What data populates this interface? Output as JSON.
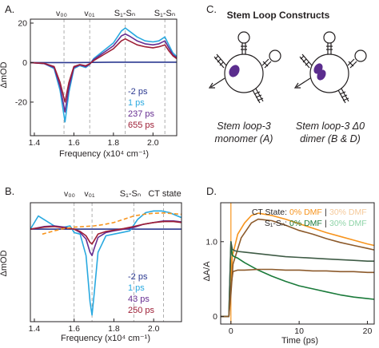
{
  "colors": {
    "navy": "#2b3990",
    "cyan": "#29a9e0",
    "purple": "#662d91",
    "darkred": "#9e1f36",
    "orange": "#f7941d",
    "ctlight": "#f5c99a",
    "brown": "#8c5a2b",
    "green": "#1a7a3a",
    "lightgreen": "#8fd4a8",
    "olive": "#3e5b45",
    "pyrene": "#5b2d8e",
    "line": "#231f20"
  },
  "panels": {
    "A": {
      "letter": "A.",
      "ylabel": "ΔmOD",
      "xlabel": "Frequency (x10⁴ cm⁻¹)",
      "xticks": [
        "1.4",
        "1.6",
        "1.8",
        "2.0"
      ],
      "yticks": [
        "20",
        "0",
        "-20"
      ],
      "markers": [
        "v₀₀",
        "v₀₁",
        "S₁-Sₙ",
        "S₁-Sₙ"
      ],
      "legend": [
        "-2 ps",
        "1 ps",
        "237 ps",
        "655 ps"
      ]
    },
    "B": {
      "letter": "B.",
      "ylabel": "ΔmOD",
      "xlabel": "Frequency (x10⁴ cm⁻¹)",
      "xticks": [
        "1.4",
        "1.6",
        "1.8",
        "2.0"
      ],
      "markers": [
        "v₀₀",
        "v₀₁",
        "S₁-Sₙ",
        "CT state"
      ],
      "legend": [
        "-2 ps",
        "1 ps",
        "43 ps",
        "250 ps"
      ]
    },
    "C": {
      "letter": "C.",
      "title": "Stem Loop Constructs",
      "captions": [
        [
          "Stem loop-3",
          "monomer (A)"
        ],
        [
          "Stem loop-3 Δ0",
          "dimer (B & D)"
        ]
      ]
    },
    "D": {
      "letter": "D.",
      "ylabel": "ΔA/A",
      "xlabel": "Time (ps)",
      "xticks": [
        "0",
        "10",
        "20"
      ],
      "yticks": [
        "1.0",
        "0"
      ],
      "legend_row1": {
        "label": "CT State:",
        "a": "0% DMF",
        "sep": "|",
        "b": "30% DMF"
      },
      "legend_row2": {
        "label": "S₁-Sₙ:",
        "a": "0% DMF",
        "sep": "|",
        "b": "30% DMF"
      }
    }
  },
  "chart_data": [
    {
      "type": "line",
      "panel": "A",
      "xlabel": "Frequency (x10⁴ cm⁻¹)",
      "ylabel": "ΔmOD",
      "xlim": [
        1.38,
        2.12
      ],
      "ylim": [
        -37,
        22
      ],
      "xticks": [
        1.4,
        1.6,
        1.8,
        2.0
      ],
      "yticks": [
        20,
        0,
        -20
      ],
      "vlines": [
        1.55,
        1.68,
        1.86,
        2.06
      ],
      "series": [
        {
          "name": "-2 ps",
          "x": [
            1.38,
            1.6,
            1.8,
            2.0,
            2.12
          ],
          "y": [
            0,
            0,
            0.2,
            0.2,
            0.2
          ]
        },
        {
          "name": "1 ps",
          "x": [
            1.38,
            1.45,
            1.5,
            1.53,
            1.555,
            1.575,
            1.6,
            1.63,
            1.66,
            1.68,
            1.7,
            1.75,
            1.8,
            1.84,
            1.86,
            1.88,
            1.92,
            1.96,
            2.0,
            2.03,
            2.06,
            2.08,
            2.1,
            2.12
          ],
          "y": [
            0,
            -0.5,
            -3,
            -14,
            -30,
            -15,
            -3,
            -1.5,
            -2.5,
            -1,
            2,
            6,
            10,
            16,
            17.5,
            16,
            13,
            11,
            10.5,
            11,
            13,
            9,
            5,
            3
          ]
        },
        {
          "name": "237 ps",
          "x": [
            1.38,
            1.45,
            1.5,
            1.53,
            1.555,
            1.575,
            1.6,
            1.63,
            1.66,
            1.68,
            1.7,
            1.75,
            1.8,
            1.84,
            1.86,
            1.88,
            1.92,
            1.96,
            2.0,
            2.03,
            2.06,
            2.08,
            2.1,
            2.12
          ],
          "y": [
            0,
            -0.5,
            -2.5,
            -12,
            -25,
            -12.5,
            -2.5,
            -1.2,
            -2,
            -0.8,
            1.5,
            5,
            8.5,
            13.5,
            14.5,
            13.5,
            11,
            9.5,
            9,
            9.5,
            11,
            7.5,
            4,
            2.5
          ]
        },
        {
          "name": "655 ps",
          "x": [
            1.38,
            1.45,
            1.5,
            1.53,
            1.555,
            1.575,
            1.6,
            1.63,
            1.66,
            1.68,
            1.7,
            1.75,
            1.8,
            1.84,
            1.86,
            1.88,
            1.92,
            1.96,
            2.0,
            2.03,
            2.06,
            2.08,
            2.1,
            2.12
          ],
          "y": [
            0,
            -0.4,
            -2,
            -10,
            -20,
            -10,
            -2,
            -1,
            -1.6,
            -0.6,
            1,
            4,
            7,
            11,
            12,
            11,
            9,
            8,
            7.5,
            8,
            9,
            6,
            3.5,
            2
          ]
        }
      ]
    },
    {
      "type": "line",
      "panel": "B",
      "xlabel": "Frequency (x10⁴ cm⁻¹)",
      "ylabel": "ΔmOD",
      "xlim": [
        1.38,
        2.14
      ],
      "ylim": [
        -28,
        8
      ],
      "xticks": [
        1.4,
        1.6,
        1.8,
        2.0
      ],
      "vlines": [
        1.6,
        1.69,
        1.9,
        2.05
      ],
      "series": [
        {
          "name": "-2 ps",
          "x": [
            1.38,
            1.6,
            1.8,
            2.0,
            2.14
          ],
          "y": [
            0,
            0,
            0,
            0,
            0
          ]
        },
        {
          "name": "1 ps",
          "x": [
            1.38,
            1.42,
            1.46,
            1.5,
            1.54,
            1.58,
            1.6,
            1.63,
            1.66,
            1.68,
            1.69,
            1.7,
            1.72,
            1.76,
            1.8,
            1.84,
            1.88,
            1.92,
            1.96,
            2.0,
            2.04,
            2.08,
            2.12,
            2.14
          ],
          "y": [
            0,
            4,
            2.5,
            1,
            0.5,
            1,
            -1,
            -1.5,
            -8,
            -22,
            -26,
            -20,
            -7,
            -2,
            -1.5,
            -1,
            -0.5,
            3,
            5,
            5.5,
            5.5,
            5,
            4,
            3.5
          ]
        },
        {
          "name": "43 ps",
          "x": [
            1.38,
            1.45,
            1.5,
            1.55,
            1.6,
            1.63,
            1.66,
            1.68,
            1.69,
            1.7,
            1.72,
            1.76,
            1.8,
            1.85,
            1.9,
            1.95,
            2.0,
            2.05,
            2.1,
            2.14
          ],
          "y": [
            0,
            0.8,
            1,
            0.6,
            0,
            -1,
            -3,
            -7,
            -8,
            -6,
            -2.5,
            -1,
            -0.5,
            0,
            0.5,
            1.5,
            2,
            2.5,
            2.5,
            2.2
          ]
        },
        {
          "name": "250 ps",
          "x": [
            1.38,
            1.45,
            1.5,
            1.55,
            1.6,
            1.63,
            1.66,
            1.68,
            1.69,
            1.7,
            1.72,
            1.76,
            1.8,
            1.85,
            1.9,
            1.95,
            2.0,
            2.05,
            2.1,
            2.14
          ],
          "y": [
            0,
            0.6,
            0.8,
            0.4,
            0,
            -0.7,
            -2,
            -4,
            -4.5,
            -3.5,
            -1.5,
            -0.7,
            -0.3,
            0.2,
            0.8,
            1.5,
            2,
            2.3,
            2.3,
            2
          ]
        },
        {
          "name": "",
          "style": "dashed",
          "x": [
            1.44,
            1.5,
            1.55,
            1.6,
            1.65,
            1.7,
            1.75,
            1.8,
            1.85,
            1.9,
            1.95,
            2.0,
            2.05,
            2.1,
            2.14
          ],
          "y": [
            -1.5,
            -0.5,
            0.2,
            0.6,
            0.8,
            1,
            1.4,
            2,
            3,
            4,
            4.5,
            4.8,
            4.9,
            4.7,
            4.5
          ]
        }
      ]
    },
    {
      "type": "line",
      "panel": "D",
      "xlabel": "Time (ps)",
      "ylabel": "ΔA/A",
      "xlim": [
        -1.5,
        21
      ],
      "ylim": [
        -0.1,
        1.52
      ],
      "xticks": [
        0,
        10,
        20
      ],
      "yticks": [
        1.0,
        0
      ],
      "series": [
        {
          "name": "CT State: 0% DMF",
          "x": [
            -1.5,
            -0.3,
            0,
            0.2,
            1,
            2,
            3,
            4,
            6,
            8,
            10,
            12,
            14,
            16,
            18,
            20,
            21
          ],
          "y": [
            0,
            0,
            0.4,
            0.8,
            1.1,
            1.25,
            1.35,
            1.38,
            1.35,
            1.3,
            1.24,
            1.18,
            1.12,
            1.07,
            1.02,
            0.97,
            0.95
          ]
        },
        {
          "name": "CT State: 30% DMF",
          "x": [
            -1.5,
            -0.3,
            0,
            0.3,
            1.5,
            3,
            4,
            6,
            8,
            10,
            12,
            14,
            16,
            18,
            20,
            21
          ],
          "y": [
            0,
            0,
            0.3,
            0.7,
            1.05,
            1.25,
            1.3,
            1.28,
            1.22,
            1.15,
            1.1,
            1.04,
            0.99,
            0.95,
            0.91,
            0.89
          ]
        },
        {
          "name": "S₁-Sₙ: 0% DMF",
          "x": [
            -1.5,
            -0.3,
            0,
            0.2,
            0.5,
            1,
            2,
            4,
            6,
            8,
            10,
            12,
            14,
            16,
            18,
            20,
            21
          ],
          "y": [
            0,
            0,
            1.0,
            0.82,
            0.8,
            0.78,
            0.72,
            0.62,
            0.54,
            0.47,
            0.41,
            0.37,
            0.33,
            0.29,
            0.26,
            0.24,
            0.23
          ]
        },
        {
          "name": "S₁-Sₙ: 30% DMF",
          "x": [
            -1.5,
            -0.3,
            0,
            0.2,
            0.5,
            1,
            2,
            4,
            6,
            8,
            10,
            12,
            14,
            16,
            18,
            20,
            21
          ],
          "y": [
            0,
            0,
            1.0,
            0.9,
            0.88,
            0.87,
            0.86,
            0.84,
            0.82,
            0.8,
            0.79,
            0.78,
            0.77,
            0.76,
            0.75,
            0.74,
            0.74
          ]
        },
        {
          "name": "",
          "x": [
            -1.5,
            -0.3,
            0,
            0.3,
            1,
            2,
            4,
            6,
            8,
            10,
            12,
            14,
            16,
            18,
            20,
            21
          ],
          "y": [
            0,
            0,
            0.4,
            0.6,
            0.62,
            0.62,
            0.63,
            0.63,
            0.62,
            0.62,
            0.61,
            0.61,
            0.6,
            0.6,
            0.59,
            0.59
          ]
        }
      ]
    }
  ]
}
